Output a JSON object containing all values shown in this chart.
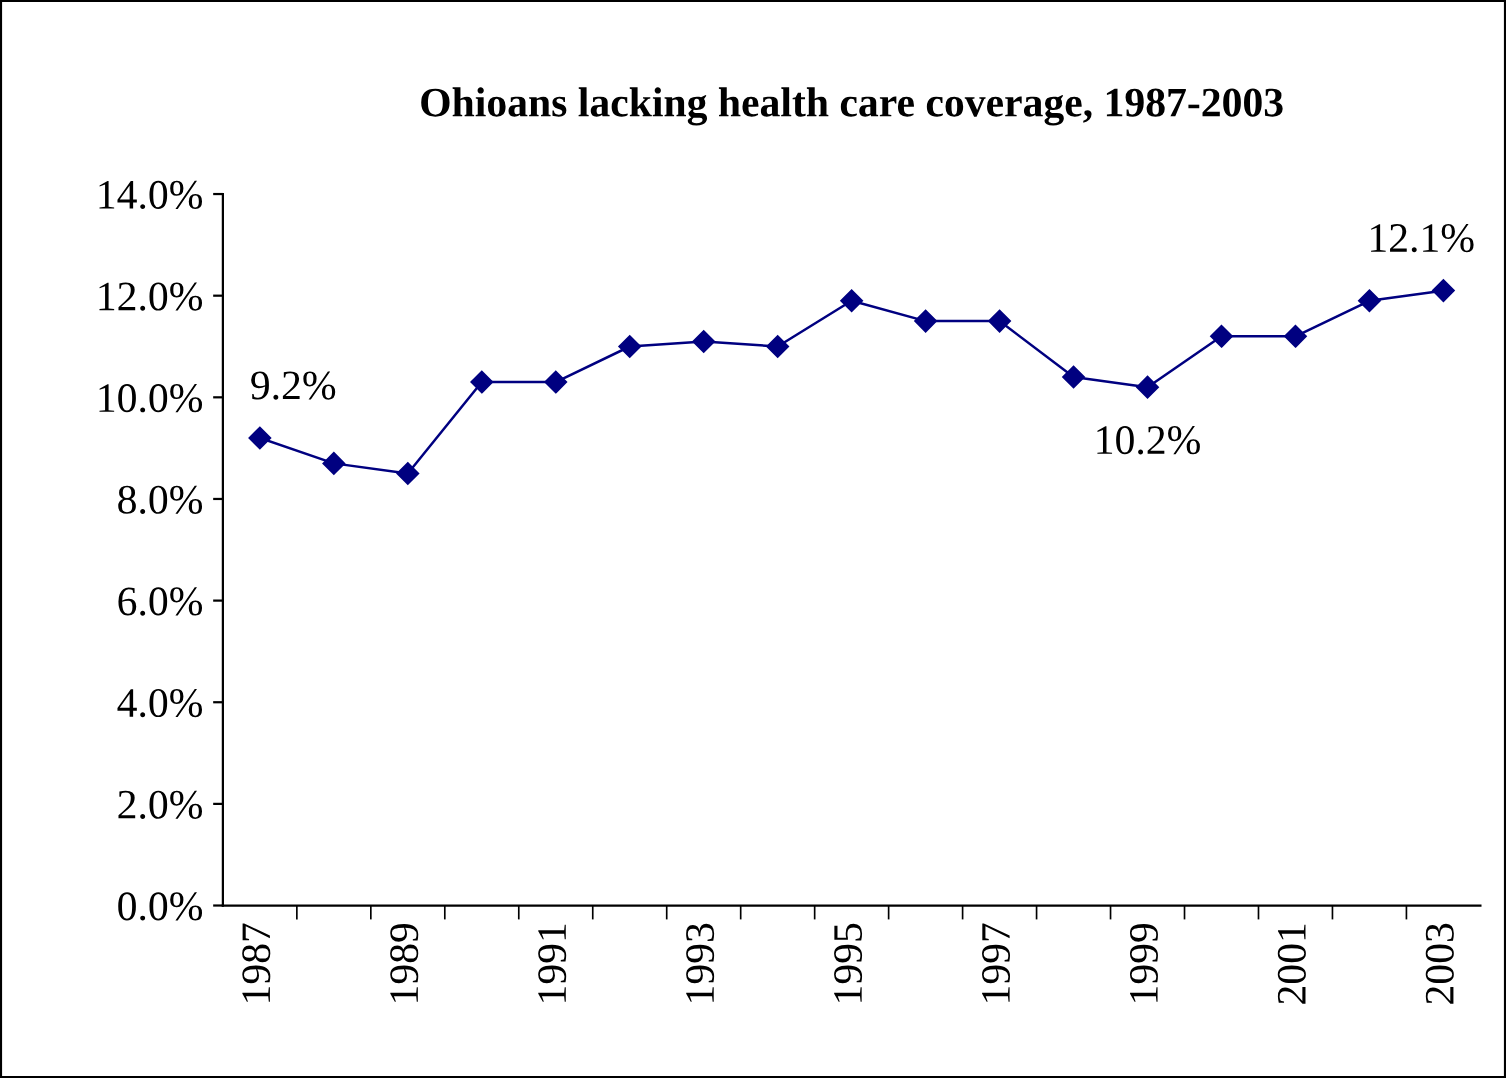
{
  "chart_data": {
    "type": "line",
    "title": "Ohioans lacking health care coverage, 1987-2003",
    "categories": [
      "1987",
      null,
      "1989",
      null,
      "1991",
      null,
      "1993",
      null,
      "1995",
      null,
      "1997",
      null,
      "1999",
      null,
      "2001",
      null,
      "2003"
    ],
    "series": [
      {
        "color": "#000080",
        "values": [
          9.2,
          8.7,
          8.5,
          10.3,
          10.3,
          11.0,
          11.1,
          11.0,
          11.9,
          11.5,
          11.5,
          10.4,
          10.2,
          11.2,
          11.2,
          11.9,
          12.1
        ]
      }
    ],
    "ylim": [
      0,
      14
    ],
    "yticks": [
      {
        "value": 0,
        "label": "0.0%"
      },
      {
        "value": 2,
        "label": "2.0%"
      },
      {
        "value": 4,
        "label": "4.0%"
      },
      {
        "value": 6,
        "label": "6.0%"
      },
      {
        "value": 8,
        "label": "8.0%"
      },
      {
        "value": 10,
        "label": "10.0%"
      },
      {
        "value": 12,
        "label": "12.0%"
      },
      {
        "value": 14,
        "label": "14.0%"
      }
    ],
    "annotations": [
      {
        "text": "9.2%",
        "x": "1987",
        "y": 9.2
      },
      {
        "text": "10.2%",
        "x": "1999",
        "y": 10.2
      },
      {
        "text": "12.1%",
        "x": "2003",
        "y": 12.1
      }
    ],
    "marker": "diamond",
    "line_style": "solid",
    "grid": false,
    "legend": false
  }
}
